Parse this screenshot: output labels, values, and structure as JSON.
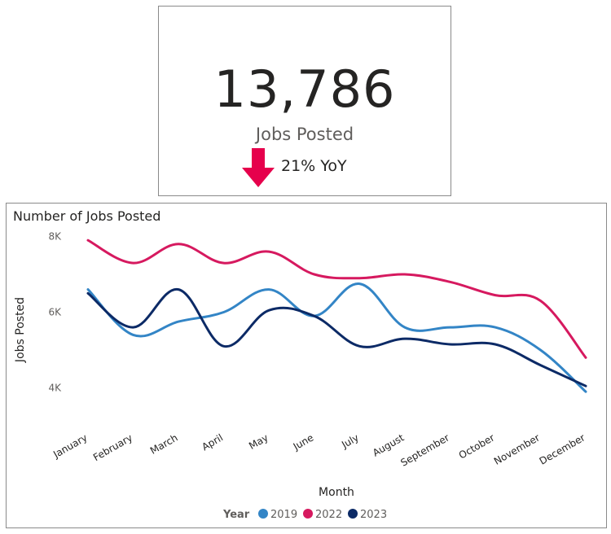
{
  "kpi": {
    "value": "13,786",
    "label": "Jobs Posted",
    "trend_text": "21% YoY",
    "trend_direction": "down",
    "trend_color": "#e6004c"
  },
  "chart_data": {
    "type": "line",
    "title": "Number of Jobs Posted",
    "xlabel": "Month",
    "ylabel": "Jobs Posted",
    "categories": [
      "January",
      "February",
      "March",
      "April",
      "May",
      "June",
      "July",
      "August",
      "September",
      "October",
      "November",
      "December"
    ],
    "yticks": [
      4000,
      6000,
      8000
    ],
    "ytick_labels": [
      "4K",
      "6K",
      "8K"
    ],
    "ylim": [
      3000,
      8500
    ],
    "legend_title": "Year",
    "legend_position": "bottom",
    "grid": false,
    "series": [
      {
        "name": "2019",
        "color": "#3385c6",
        "values": [
          6600,
          5400,
          5750,
          6000,
          6600,
          5900,
          6750,
          5600,
          5600,
          5600,
          5000,
          3900
        ]
      },
      {
        "name": "2022",
        "color": "#d6195f",
        "values": [
          7900,
          7300,
          7800,
          7300,
          7600,
          7000,
          6900,
          7000,
          6800,
          6450,
          6300,
          4800
        ]
      },
      {
        "name": "2023",
        "color": "#0c2a66",
        "values": [
          6500,
          5600,
          6600,
          5100,
          6050,
          5900,
          5100,
          5300,
          5150,
          5150,
          4600,
          4050
        ]
      }
    ]
  }
}
